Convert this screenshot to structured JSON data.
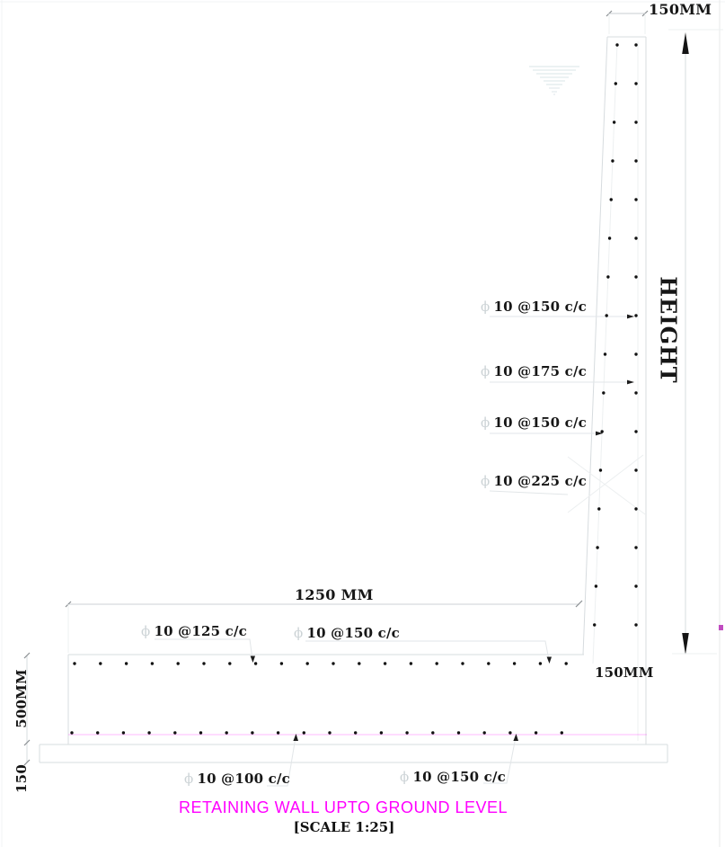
{
  "colors": {
    "title_magenta": "#ff00ff",
    "faint_magenta_line": "rgba(255,0,255,0.28)",
    "construction_line": "#d7dcdf",
    "dot_black": "#111111"
  },
  "phi": "ϕ",
  "labels": {
    "top_width": "150MM",
    "height": "HEIGHT",
    "footing_width": "1250 MM",
    "footing_depth": "500MM",
    "lean_slab_depth": "150",
    "stem_base_width": "150MM"
  },
  "callouts": {
    "wall": [
      "10 @150 c/c",
      "10 @175 c/c",
      "10 @150 c/c",
      "10 @225 c/c"
    ],
    "footing_top": [
      "10 @125 c/c",
      "10 @150 c/c"
    ],
    "footing_bottom": [
      "10 @100 c/c",
      "10 @150 c/c"
    ]
  },
  "title": "RETAINING WALL UPTO GROUND LEVEL",
  "scale_note": "[SCALE 1:25]"
}
